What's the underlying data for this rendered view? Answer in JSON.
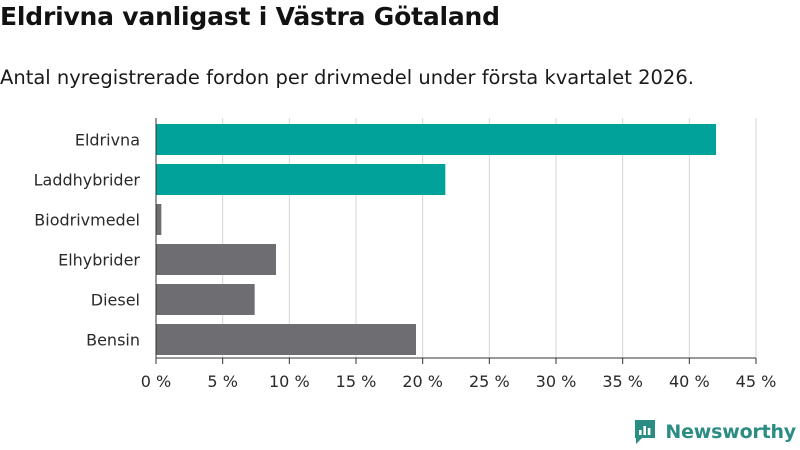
{
  "chart_data": {
    "type": "bar",
    "orientation": "horizontal",
    "title": "Eldrivna vanligast i Västra Götaland",
    "subtitle": "Antal nyregistrerade fordon per drivmedel under första kvartalet 2026.",
    "categories": [
      "Eldrivna",
      "Laddhybrider",
      "Biodrivmedel",
      "Elhybrider",
      "Diesel",
      "Bensin"
    ],
    "values": [
      42.0,
      21.7,
      0.4,
      9.0,
      7.4,
      19.5
    ],
    "highlighted": [
      true,
      true,
      false,
      false,
      false,
      false
    ],
    "xlim": [
      0,
      45
    ],
    "xticks": [
      0,
      5,
      10,
      15,
      20,
      25,
      30,
      35,
      40,
      45
    ],
    "xtick_labels": [
      "0 %",
      "5 %",
      "10 %",
      "15 %",
      "20 %",
      "25 %",
      "30 %",
      "35 %",
      "40 %",
      "45 %"
    ],
    "xlabel": "",
    "ylabel": "",
    "grid": true,
    "colors": {
      "highlight": "#00a29a",
      "default": "#6e6d72",
      "grid": "#d6d6d6",
      "axis": "#333333"
    }
  },
  "brand": {
    "name": "Newsworthy",
    "logo_icon": "newsworthy-logo-icon",
    "color": "#2b8c84"
  }
}
